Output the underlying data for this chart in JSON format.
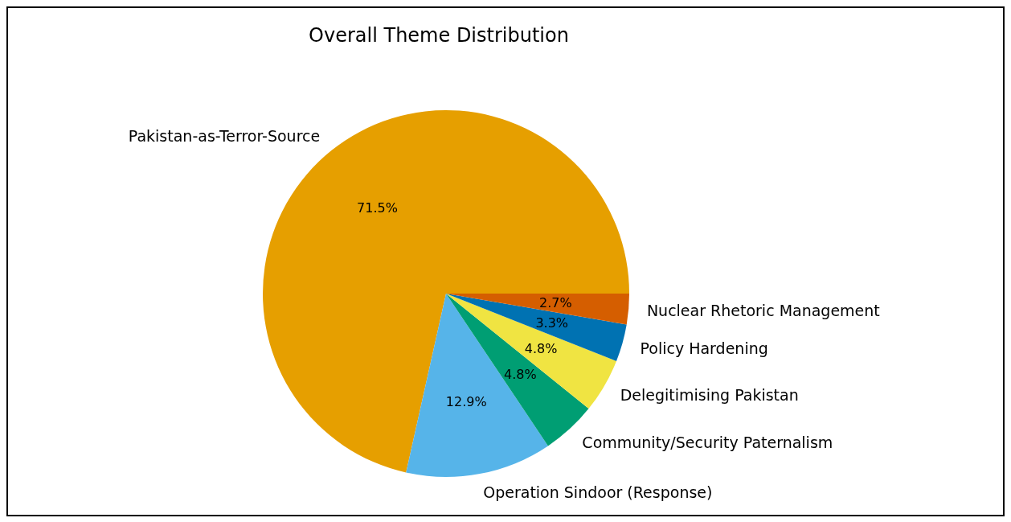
{
  "chart_data": {
    "type": "pie",
    "title": "Overall Theme Distribution",
    "categories": [
      "Pakistan-as-Terror-Source",
      "Operation Sindoor (Response)",
      "Community/Security Paternalism",
      "Delegitimising Pakistan",
      "Policy Hardening",
      "Nuclear Rhetoric Management"
    ],
    "values": [
      71.5,
      12.9,
      4.8,
      4.8,
      3.3,
      2.7
    ],
    "value_labels": [
      "71.5%",
      "12.9%",
      "4.8%",
      "4.8%",
      "3.3%",
      "2.7%"
    ],
    "colors": [
      "#e69f00",
      "#56b4e9",
      "#009e73",
      "#f0e442",
      "#0072b2",
      "#d55e00"
    ],
    "legend": false
  }
}
